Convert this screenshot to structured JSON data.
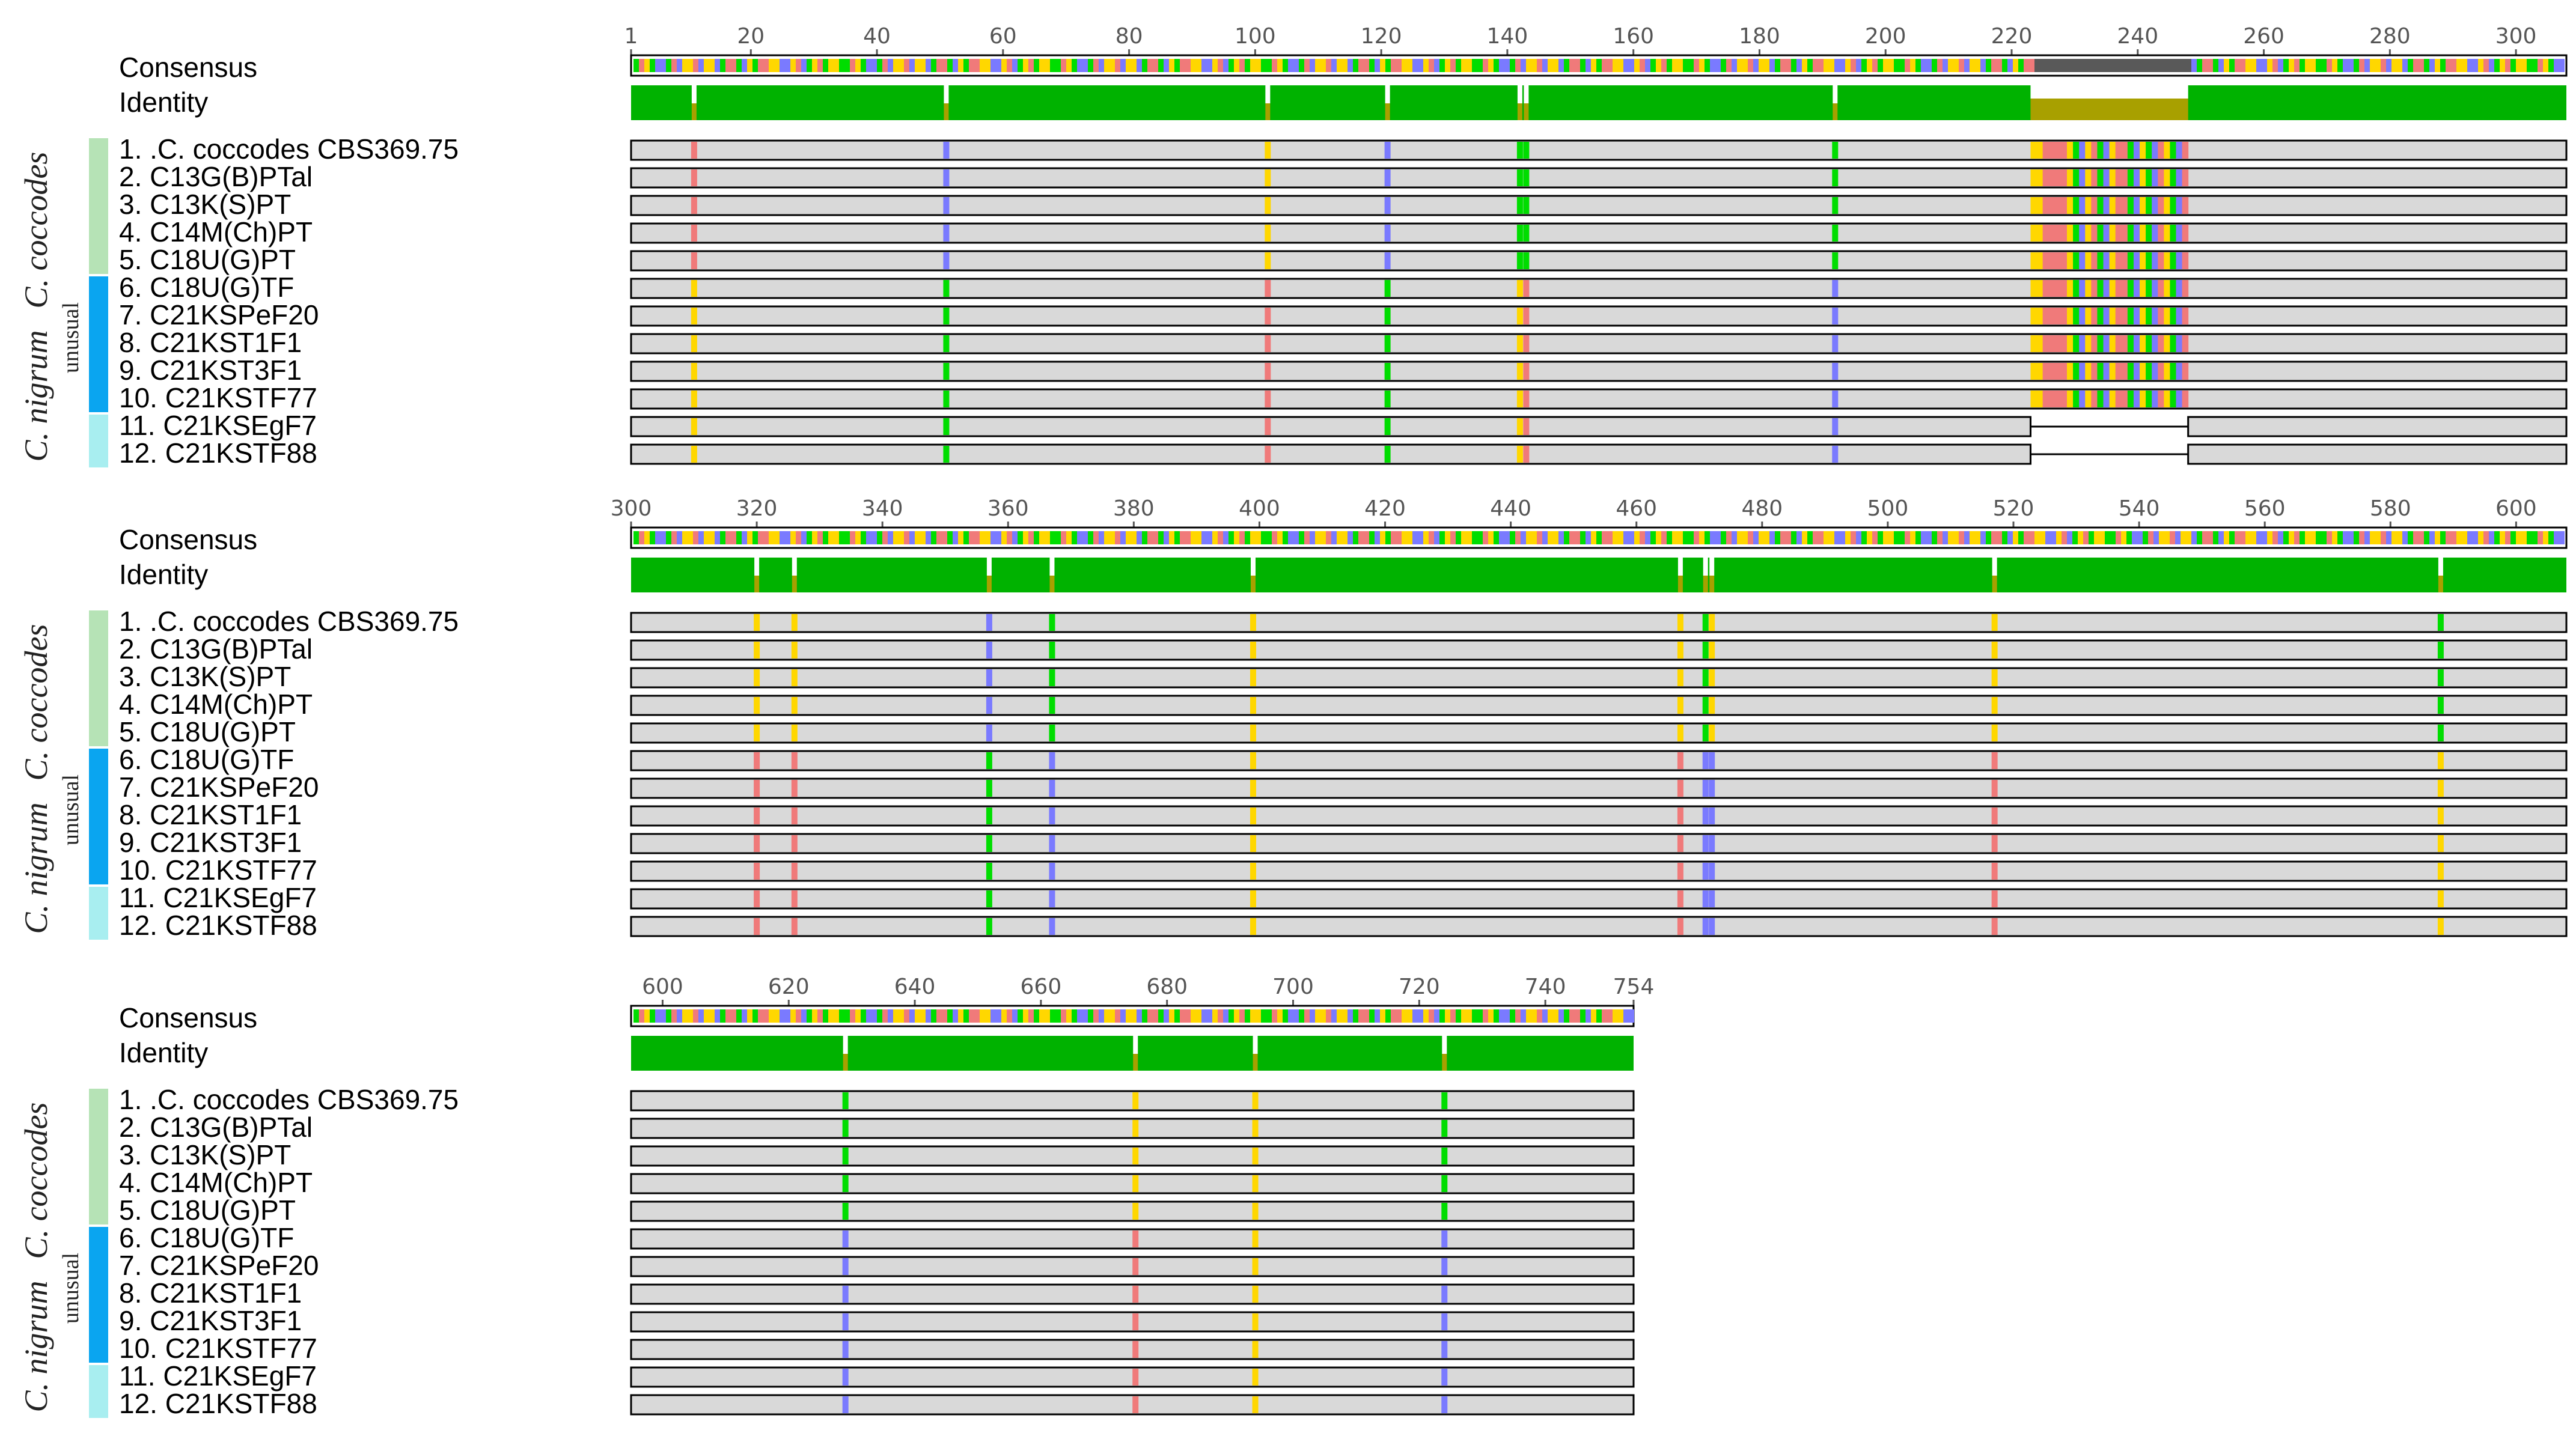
{
  "palette": {
    "background": "#ffffff",
    "identity_full": "#00b200",
    "identity_partial": "#a8a000",
    "identity_low": "#595959",
    "sequence_fill": "#d9d9d9",
    "sequence_stroke": "#000000",
    "base_A": "#f07a7a",
    "base_C": "#7a7aff",
    "base_G": "#ffd700",
    "base_T": "#00dd00",
    "group_coccodes": "#b6e3b6",
    "group_unusual": "#0aa5f0",
    "group_nigrum": "#a8eef0",
    "ruler": "#555555"
  },
  "labels": {
    "consensus": "Consensus",
    "identity": "Identity",
    "species_coccodes": "C. coccodes",
    "species_nigrum": "C. nigrum",
    "unusual": "unusual"
  },
  "sequences": [
    "1. .C. coccodes CBS369.75",
    "2. C13G(B)PTal",
    "3. C13K(S)PT",
    "4. C14M(Ch)PT",
    "5. C18U(G)PT",
    "6. C18U(G)TF",
    "7. C21KSPeF20",
    "8. C21KST1F1",
    "9. C21KST3F1",
    "10. C21KSTF77",
    "11. C21KSEgF7",
    "12. C21KSTF88"
  ],
  "panels": [
    {
      "start": 1,
      "end": 308,
      "ruler_ticks": [
        1,
        20,
        40,
        60,
        80,
        100,
        120,
        140,
        160,
        180,
        200,
        220,
        240,
        260,
        280,
        300
      ],
      "gap": [
        223,
        248
      ],
      "gap_rows": [
        11,
        12
      ],
      "low_identity": [
        [
          223,
          248
        ]
      ],
      "variable_sites": [
        {
          "pos": 11,
          "a": "A",
          "b": "G"
        },
        {
          "pos": 51,
          "a": "C",
          "b": "T"
        },
        {
          "pos": 102,
          "a": "G",
          "b": "A"
        },
        {
          "pos": 121,
          "a": "C",
          "b": "T"
        },
        {
          "pos": 142,
          "a": "T",
          "b": "G"
        },
        {
          "pos": 143,
          "a": "T",
          "b": "A"
        },
        {
          "pos": 192,
          "a": "T",
          "b": "C"
        }
      ],
      "insert_pattern": [
        "G",
        "G",
        "A",
        "A",
        "A",
        "A",
        "G",
        "T",
        "C",
        "G",
        "A",
        "T",
        "C",
        "G",
        "A",
        "A",
        "T",
        "C",
        "G",
        "T",
        "C",
        "A",
        "G",
        "T",
        "C",
        "A"
      ]
    },
    {
      "start": 300,
      "end": 608,
      "ruler_ticks": [
        300,
        320,
        340,
        360,
        380,
        400,
        420,
        440,
        460,
        480,
        500,
        520,
        540,
        560,
        580,
        600
      ],
      "gap": [],
      "gap_rows": [],
      "low_identity": [],
      "variable_sites": [
        {
          "pos": 320,
          "a": "G",
          "b": "A"
        },
        {
          "pos": 326,
          "a": "G",
          "b": "A"
        },
        {
          "pos": 357,
          "a": "C",
          "b": "T"
        },
        {
          "pos": 367,
          "a": "T",
          "b": "C"
        },
        {
          "pos": 399,
          "a": "G",
          "b": "G"
        },
        {
          "pos": 467,
          "a": "G",
          "b": "A"
        },
        {
          "pos": 471,
          "a": "T",
          "b": "C"
        },
        {
          "pos": 472,
          "a": "G",
          "b": "C"
        },
        {
          "pos": 517,
          "a": "G",
          "b": "A"
        },
        {
          "pos": 588,
          "a": "T",
          "b": "G"
        }
      ],
      "insert_pattern": []
    },
    {
      "start": 595,
      "end": 754,
      "ruler_ticks": [
        600,
        620,
        640,
        660,
        680,
        700,
        720,
        740,
        754
      ],
      "gap": [],
      "gap_rows": [],
      "low_identity": [],
      "variable_sites": [
        {
          "pos": 629,
          "a": "T",
          "b": "C"
        },
        {
          "pos": 675,
          "a": "G",
          "b": "A"
        },
        {
          "pos": 694,
          "a": "G",
          "b": "G"
        },
        {
          "pos": 724,
          "a": "T",
          "b": "C"
        }
      ],
      "insert_pattern": []
    }
  ]
}
